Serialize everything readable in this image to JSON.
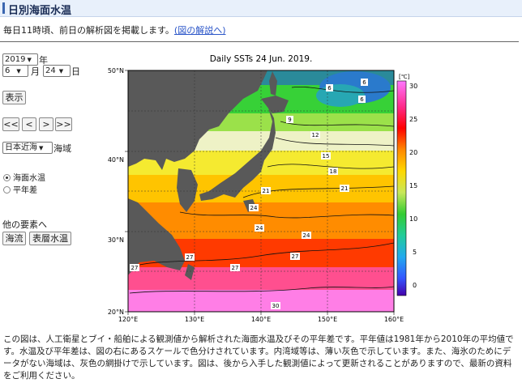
{
  "page_title": "日別海面水温",
  "intro": {
    "text": "毎日11時頃、前日の解析図を掲載します。",
    "link": "(図の解説へ)"
  },
  "controls": {
    "year_value": "2019",
    "year_unit": "年",
    "month_value": "6",
    "month_unit": "月",
    "day_value": "24",
    "day_unit": "日",
    "show_label": "表示",
    "nav_buttons": [
      "<<",
      "<",
      ">",
      ">>"
    ],
    "region_value": "日本近海",
    "region_unit": "海域",
    "radio_options": [
      {
        "label": "海面水温",
        "selected": true
      },
      {
        "label": "平年差",
        "selected": false
      }
    ],
    "other_elements_label": "他の要素へ",
    "other_buttons": [
      "海流",
      "表層水温"
    ]
  },
  "map": {
    "title": "Daily SSTs 24 Jun. 2019.",
    "lat_labels": [
      "50°N",
      "40°N",
      "30°N",
      "20°N"
    ],
    "lon_labels": [
      "120°E",
      "130°E",
      "140°E",
      "150°E",
      "160°E"
    ],
    "contour_labels": [
      "6",
      "6",
      "6",
      "9",
      "12",
      "15",
      "18",
      "21",
      "21",
      "24",
      "24",
      "24",
      "27",
      "27",
      "27",
      "27",
      "30"
    ],
    "colorbar": {
      "unit": "[℃]",
      "ticks": [
        "30",
        "25",
        "20",
        "15",
        "10",
        "5",
        "0"
      ]
    },
    "colors": {
      "land": "#595959",
      "warm": "#ff2a00",
      "hot": "#ff52a8",
      "cool": "#37d137"
    }
  },
  "footer": "この図は、人工衛星とブイ・船舶による観測値から解析された海面水温及びその平年差です。平年値は1981年から2010年の平均値です。水温及び平年差は、図の右にあるスケールで色分けされています。内湾域等は、薄い灰色で示しています。また、海氷のためにデータがない海域は、灰色の網掛けで示しています。図は、後から入手した観測値によって更新されることがありますので、最新の資料をご利用ください。"
}
